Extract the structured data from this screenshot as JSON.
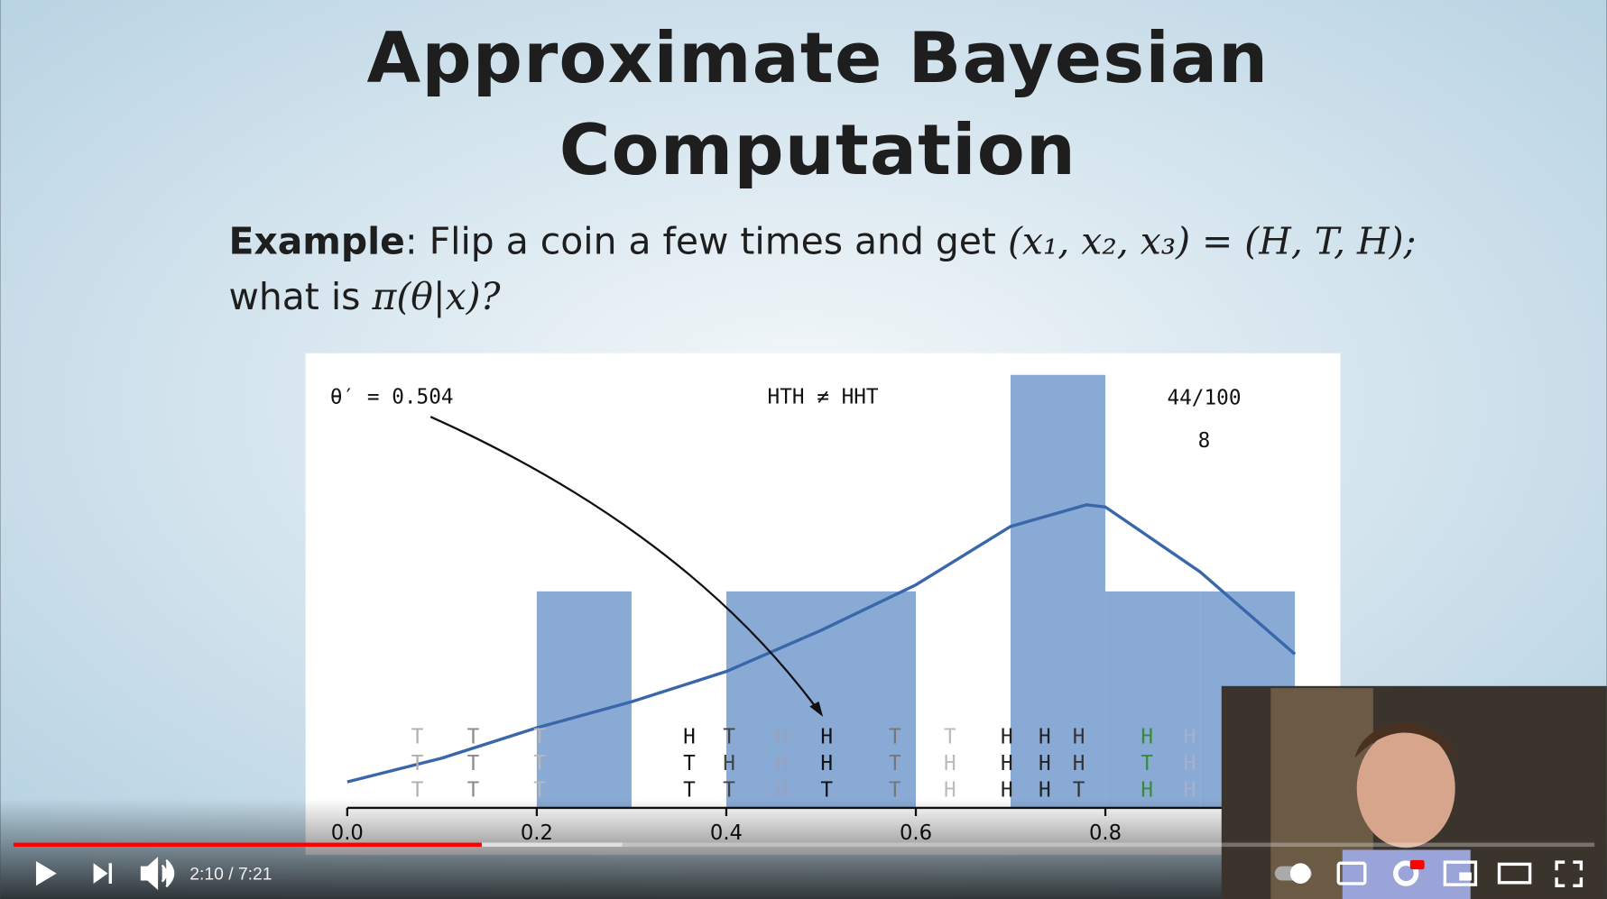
{
  "slide": {
    "title": [
      "Approximate Bayesian",
      "Computation"
    ],
    "example": {
      "label": "Example",
      "text1": ": Flip a coin a few times and get ",
      "math1": "(x₁, x₂, x₃) = (H, T, H);",
      "text2": "what is ",
      "math2": "π(θ|x)?"
    }
  },
  "chart_data": {
    "type": "histogram",
    "bins": [
      0.0,
      0.1,
      0.2,
      0.3,
      0.4,
      0.5,
      0.6,
      0.7,
      0.8,
      0.9,
      1.0
    ],
    "counts": [
      0,
      0,
      1,
      0,
      1,
      1,
      0,
      2,
      1,
      1
    ],
    "color": "#88aad4",
    "curve": {
      "color": "#3a66aa",
      "x": [
        0.0,
        0.1,
        0.2,
        0.3,
        0.4,
        0.5,
        0.6,
        0.7,
        0.78,
        0.8,
        0.9,
        1.0
      ],
      "y": [
        0.12,
        0.23,
        0.37,
        0.49,
        0.63,
        0.82,
        1.03,
        1.3,
        1.4,
        1.39,
        1.09,
        0.71
      ]
    },
    "xlim": [
      -0.044,
      1.048
    ],
    "ylim": [
      0,
      2.1
    ],
    "xticks": [
      {
        "value": 0.0,
        "label": "0.0"
      },
      0.2,
      0.4,
      0.6,
      0.8
    ],
    "annotations": {
      "theta": "θ′ = 0.504",
      "compare": "HTH ≠ HHT",
      "accepted": "44/100",
      "count": "8"
    },
    "coin_flips": [
      {
        "theta": 0.074,
        "flips": [
          "T",
          "T",
          "T"
        ],
        "color": "#b0b0b0"
      },
      {
        "theta": 0.133,
        "flips": [
          "T",
          "T",
          "T"
        ],
        "color": "#8a8a8a"
      },
      {
        "theta": 0.203,
        "flips": [
          "T",
          "T",
          "T"
        ],
        "color": "#b8b8b8"
      },
      {
        "theta": 0.361,
        "flips": [
          "H",
          "T",
          "T"
        ],
        "color": "#111111"
      },
      {
        "theta": 0.403,
        "flips": [
          "T",
          "H",
          "T"
        ],
        "color": "#444444"
      },
      {
        "theta": 0.458,
        "flips": [
          "H",
          "H",
          "H"
        ],
        "color": "#98a2c0"
      },
      {
        "theta": 0.506,
        "flips": [
          "H",
          "H",
          "T"
        ],
        "color": "#111111"
      },
      {
        "theta": 0.578,
        "flips": [
          "T",
          "T",
          "T"
        ],
        "color": "#777777"
      },
      {
        "theta": 0.636,
        "flips": [
          "T",
          "H",
          "H"
        ],
        "color": "#bbbbbb"
      },
      {
        "theta": 0.696,
        "flips": [
          "H",
          "H",
          "H"
        ],
        "color": "#222222"
      },
      {
        "theta": 0.736,
        "flips": [
          "H",
          "H",
          "H"
        ],
        "color": "#222222"
      },
      {
        "theta": 0.772,
        "flips": [
          "H",
          "H",
          "T"
        ],
        "color": "#333333"
      },
      {
        "theta": 0.844,
        "flips": [
          "H",
          "T",
          "H"
        ],
        "color": "#3a8a3a"
      },
      {
        "theta": 0.889,
        "flips": [
          "H",
          "H",
          "H"
        ],
        "color": "#aab0c8"
      }
    ]
  },
  "player": {
    "time": "2:10 / 7:21"
  }
}
